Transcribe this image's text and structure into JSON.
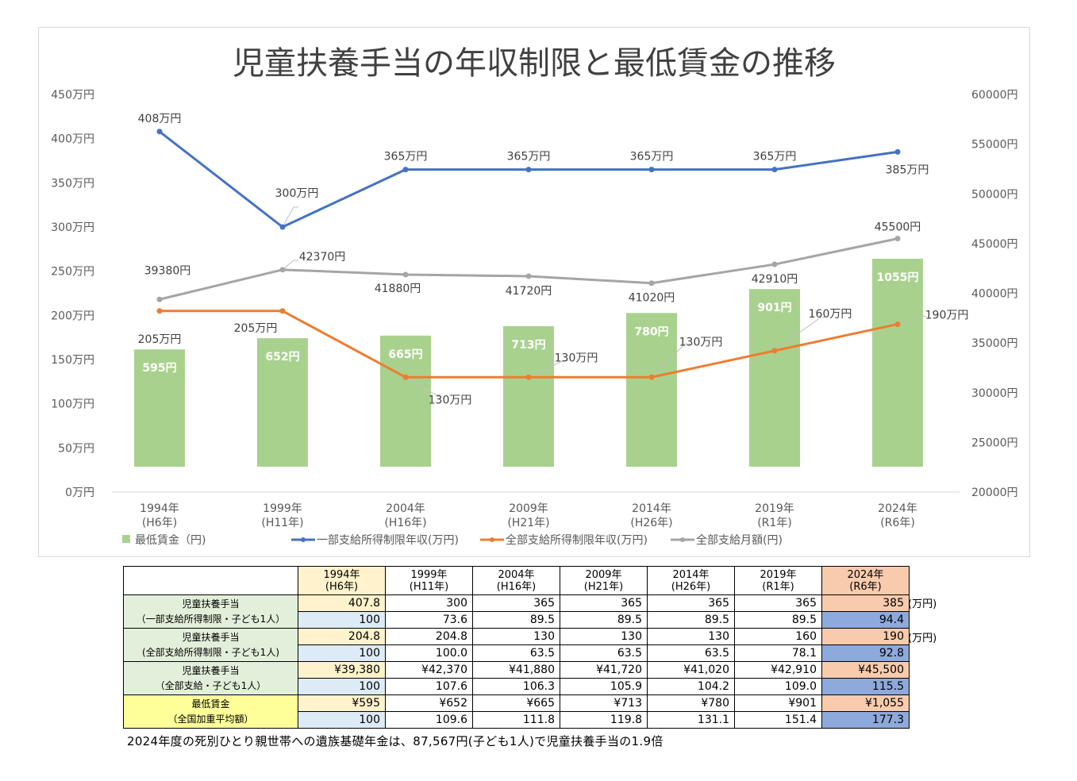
{
  "chart_data": {
    "type": "bar+line",
    "title": "児童扶養手当の年収制限と最低賃金の推移",
    "categories": [
      {
        "year": "1994年",
        "era": "(H6年)"
      },
      {
        "year": "1999年",
        "era": "(H11年)"
      },
      {
        "year": "2004年",
        "era": "(H16年)"
      },
      {
        "year": "2009年",
        "era": "(H21年)"
      },
      {
        "year": "2014年",
        "era": "(H26年)"
      },
      {
        "year": "2019年",
        "era": "(R1年)"
      },
      {
        "year": "2024年",
        "era": "(R6年)"
      }
    ],
    "left_axis": {
      "ylim": [
        0,
        450
      ],
      "ticks": [
        "0万円",
        "50万円",
        "100万円",
        "150万円",
        "200万円",
        "250万円",
        "300万円",
        "350万円",
        "400万円",
        "450万円"
      ]
    },
    "right_axis": {
      "ylim": [
        20000,
        60000
      ],
      "ticks": [
        "20000円",
        "25000円",
        "30000円",
        "35000円",
        "40000円",
        "45000円",
        "50000円",
        "55000円",
        "60000円"
      ]
    },
    "series": [
      {
        "name": "最低賃金（円)",
        "kind": "bar",
        "color": "#a9d18e",
        "axis": "left_bar",
        "values": [
          595,
          652,
          665,
          713,
          780,
          901,
          1055
        ],
        "labels": [
          "595円",
          "652円",
          "665円",
          "713円",
          "780円",
          "901円",
          "1055円"
        ]
      },
      {
        "name": "一部支給所得制限年収(万円)",
        "kind": "line",
        "color": "#4472c4",
        "axis": "left",
        "values": [
          408,
          300,
          365,
          365,
          365,
          365,
          385
        ],
        "labels": [
          "408万円",
          "300万円",
          "365万円",
          "365万円",
          "365万円",
          "365万円",
          "385万円"
        ]
      },
      {
        "name": "全部支給所得制限年収(万円)",
        "kind": "line",
        "color": "#ed7d31",
        "axis": "left",
        "values": [
          205,
          205,
          130,
          130,
          130,
          160,
          190
        ],
        "labels": [
          "205万円",
          "205万円",
          "130万円",
          "130万円",
          "130万円",
          "160万円",
          "190万円"
        ]
      },
      {
        "name": "全部支給月額(円)",
        "kind": "line",
        "color": "#a5a5a5",
        "axis": "right",
        "values": [
          39380,
          42370,
          41880,
          41720,
          41020,
          42910,
          45500
        ],
        "labels": [
          "39380円",
          "42370円",
          "41880円",
          "41720円",
          "41020円",
          "42910円",
          "45500円"
        ]
      }
    ]
  },
  "table": {
    "headers": [
      {
        "year": "1994年",
        "era": "(H6年)"
      },
      {
        "year": "1999年",
        "era": "(H11年)"
      },
      {
        "year": "2004年",
        "era": "(H16年)"
      },
      {
        "year": "2009年",
        "era": "(H21年)"
      },
      {
        "year": "2014年",
        "era": "(H26年)"
      },
      {
        "year": "2019年",
        "era": "(R1年)"
      },
      {
        "year": "2024年",
        "era": "(R6年)"
      }
    ],
    "groups": [
      {
        "label1": "児童扶養手当",
        "label2": "（一部支給所得制限・子ども1人）",
        "unit": "(万円)",
        "values": [
          "407.8",
          "300",
          "365",
          "365",
          "365",
          "365",
          "385"
        ],
        "index": [
          "100",
          "73.6",
          "89.5",
          "89.5",
          "89.5",
          "89.5",
          "94.4"
        ]
      },
      {
        "label1": "児童扶養手当",
        "label2": "(全部支給所得制限・子ども1人)",
        "unit": "(万円)",
        "values": [
          "204.8",
          "204.8",
          "130",
          "130",
          "130",
          "160",
          "190"
        ],
        "index": [
          "100",
          "100.0",
          "63.5",
          "63.5",
          "63.5",
          "78.1",
          "92.8"
        ]
      },
      {
        "label1": "児童扶養手当",
        "label2": "（全部支給・子ども1人）",
        "unit": "",
        "values": [
          "¥39,380",
          "¥42,370",
          "¥41,880",
          "¥41,720",
          "¥41,020",
          "¥42,910",
          "¥45,500"
        ],
        "index": [
          "100",
          "107.6",
          "106.3",
          "105.9",
          "104.2",
          "109.0",
          "115.5"
        ]
      },
      {
        "label1": "最低賃金",
        "label2": "（全国加重平均額）",
        "unit": "",
        "values": [
          "¥595",
          "¥652",
          "¥665",
          "¥713",
          "¥780",
          "¥901",
          "¥1,055"
        ],
        "index": [
          "100",
          "109.6",
          "111.8",
          "119.8",
          "131.1",
          "151.4",
          "177.3"
        ]
      }
    ]
  },
  "note": "2024年度の死別ひとり親世帯への遺族基礎年金は、87,567円(子ども1人)で児童扶養手当の1.9倍"
}
